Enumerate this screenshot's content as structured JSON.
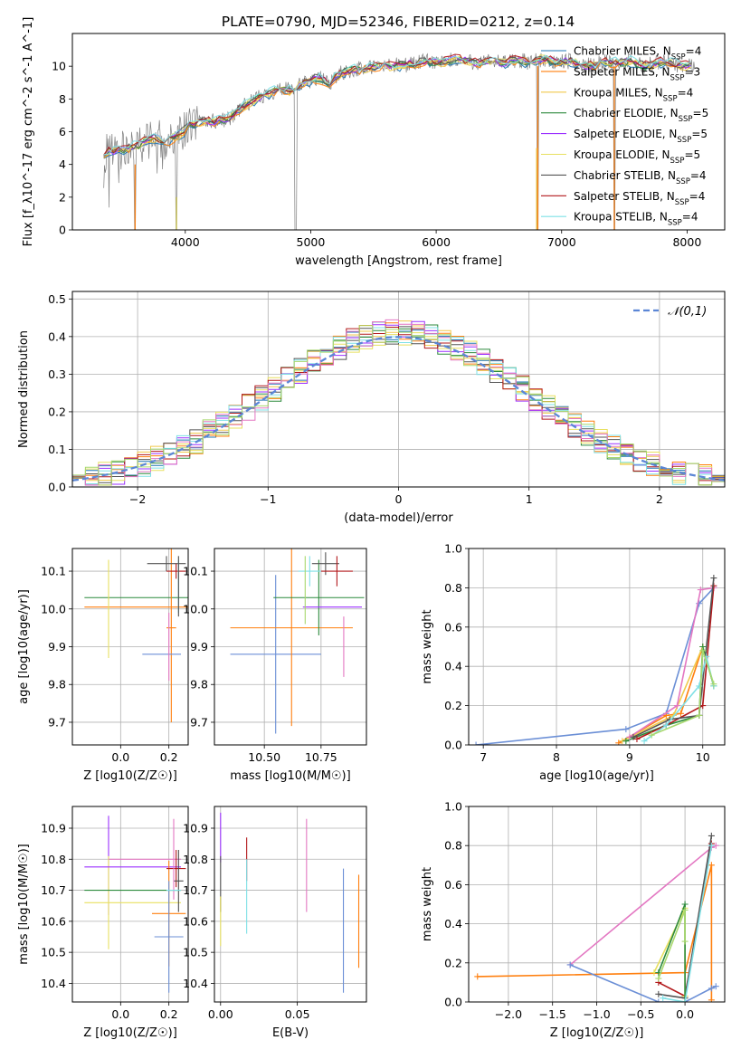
{
  "title": "PLATE=0790, MJD=52346, FIBERID=0212, z=0.14",
  "colors": {
    "chabrier_miles": "#1f77b4",
    "salpeter_miles": "#ff7f0e",
    "kroupa_miles": "#f0c94c",
    "chabrier_elodie": "#2c8a3c",
    "salpeter_elodie": "#9b30ff",
    "kroupa_elodie": "#e8e060",
    "chabrier_stelib": "#555555",
    "salpeter_stelib": "#b2181b",
    "kroupa_stelib": "#7fe0e6",
    "extra_1": "#e377c2",
    "extra_2": "#6b8fd6",
    "extra_3": "#a8d86e",
    "extra_4": "#4d4d4d"
  },
  "chart_data": [
    {
      "id": "spectrum",
      "type": "line",
      "xlabel": "wavelength [Angstrom, rest frame]",
      "ylabel": "Flux [f_λ10^-17 erg cm^-2 s^-1 A^-1]",
      "xlim": [
        3100,
        8300
      ],
      "ylim": [
        0,
        12
      ],
      "xticks": [
        4000,
        5000,
        6000,
        7000,
        8000
      ],
      "yticks": [
        0,
        2,
        4,
        6,
        8,
        10
      ],
      "grid": false,
      "legend_position": "upper-right",
      "series": [
        {
          "name": "Chabrier MILES, N_SSP=4",
          "color_key": "chabrier_miles"
        },
        {
          "name": "Salpeter MILES, N_SSP=3",
          "color_key": "salpeter_miles"
        },
        {
          "name": "Kroupa MILES, N_SSP=4",
          "color_key": "kroupa_miles"
        },
        {
          "name": "Chabrier ELODIE, N_SSP=5",
          "color_key": "chabrier_elodie"
        },
        {
          "name": "Salpeter ELODIE, N_SSP=5",
          "color_key": "salpeter_elodie"
        },
        {
          "name": "Kroupa ELODIE, N_SSP=5",
          "color_key": "kroupa_elodie"
        },
        {
          "name": "Chabrier STELIB, N_SSP=4",
          "color_key": "chabrier_stelib"
        },
        {
          "name": "Salpeter STELIB, N_SSP=4",
          "color_key": "salpeter_stelib"
        },
        {
          "name": "Kroupa STELIB, N_SSP=4",
          "color_key": "kroupa_stelib"
        }
      ],
      "data_curve": [
        [
          3350,
          4.6
        ],
        [
          3450,
          4.9
        ],
        [
          3550,
          5.0
        ],
        [
          3650,
          5.3
        ],
        [
          3750,
          5.6
        ],
        [
          3850,
          5.4
        ],
        [
          3950,
          5.8
        ],
        [
          4050,
          6.4
        ],
        [
          4150,
          6.7
        ],
        [
          4250,
          6.6
        ],
        [
          4350,
          6.8
        ],
        [
          4450,
          7.5
        ],
        [
          4550,
          7.9
        ],
        [
          4650,
          8.3
        ],
        [
          4750,
          8.6
        ],
        [
          4850,
          8.5
        ],
        [
          4950,
          9.0
        ],
        [
          5050,
          9.3
        ],
        [
          5150,
          9.0
        ],
        [
          5250,
          9.6
        ],
        [
          5350,
          9.8
        ],
        [
          5450,
          9.9
        ],
        [
          5550,
          10.0
        ],
        [
          5650,
          10.0
        ],
        [
          5750,
          10.1
        ],
        [
          5850,
          10.2
        ],
        [
          5950,
          10.3
        ],
        [
          6050,
          10.2
        ],
        [
          6150,
          10.4
        ],
        [
          6250,
          10.3
        ],
        [
          6350,
          10.2
        ],
        [
          6450,
          10.3
        ],
        [
          6550,
          10.2
        ],
        [
          6650,
          10.4
        ],
        [
          6750,
          10.2
        ],
        [
          6850,
          10.5
        ],
        [
          6950,
          10.2
        ],
        [
          7050,
          10.3
        ],
        [
          7150,
          10.1
        ],
        [
          7250,
          10.0
        ],
        [
          7350,
          10.3
        ],
        [
          7450,
          10.2
        ],
        [
          7550,
          10.3
        ],
        [
          7650,
          10.0
        ],
        [
          7750,
          10.2
        ],
        [
          7850,
          10.3
        ],
        [
          7950,
          10.0
        ],
        [
          8050,
          10.1
        ]
      ],
      "line_drops": [
        3600,
        3930,
        4880,
        6810,
        7420
      ]
    },
    {
      "id": "residuals",
      "type": "line",
      "xlabel": "(data-model)/error",
      "ylabel": "Normed distribution",
      "xlim": [
        -2.5,
        2.5
      ],
      "ylim": [
        0,
        0.52
      ],
      "xticks": [
        -2,
        -1,
        0,
        1,
        2
      ],
      "yticks": [
        0.0,
        0.1,
        0.2,
        0.3,
        0.4,
        0.5
      ],
      "grid": true,
      "legend_position": "upper-right",
      "gauss_label": "𝒩(0,1)",
      "bin_width": 0.1,
      "bin_start": -2.5
    },
    {
      "id": "age_vs_Z",
      "type": "scatter",
      "xlabel": "Z [log10(Z/Z☉)]",
      "ylabel": "age [log10(age/yr)]",
      "xlim": [
        -0.2,
        0.28
      ],
      "ylim": [
        9.64,
        10.16
      ],
      "xticks": [
        0.0,
        0.2
      ],
      "yticks": [
        9.7,
        9.8,
        9.9,
        10.0,
        10.1
      ],
      "grid": true,
      "points": [
        {
          "x": 0.2,
          "xerr": 0.35,
          "y": 10.03,
          "yerr": 0.0,
          "color_key": "chabrier_elodie"
        },
        {
          "x": 0.21,
          "xerr": 0.02,
          "y": 9.95,
          "yerr": 0.25,
          "color_key": "salpeter_miles"
        },
        {
          "x": 0.2,
          "xerr": 0.35,
          "y": 10.005,
          "yerr": 0.0,
          "color_key": "salpeter_miles"
        },
        {
          "x": 0.17,
          "xerr": 0.08,
          "y": 9.88,
          "yerr": 0.0,
          "color_key": "extra_2"
        },
        {
          "x": 0.19,
          "xerr": 0.08,
          "y": 10.12,
          "yerr": 0.02,
          "color_key": "chabrier_stelib"
        },
        {
          "x": 0.23,
          "xerr": 0.04,
          "y": 10.1,
          "yerr": 0.02,
          "color_key": "salpeter_stelib"
        },
        {
          "x": -0.05,
          "xerr": 0.0,
          "y": 10.0,
          "yerr": 0.13,
          "color_key": "kroupa_elodie"
        },
        {
          "x": 0.24,
          "xerr": 0.0,
          "y": 10.06,
          "yerr": 0.07,
          "color_key": "kroupa_stelib"
        },
        {
          "x": 0.24,
          "xerr": 0.0,
          "y": 10.06,
          "yerr": 0.08,
          "color_key": "extra_4"
        },
        {
          "x": 0.2,
          "xerr": 0.0,
          "y": 9.9,
          "yerr": 0.09,
          "color_key": "extra_1"
        }
      ]
    },
    {
      "id": "age_vs_mass",
      "type": "scatter",
      "xlabel": "mass [log10(M/M☉)]",
      "ylabel": "",
      "xlim": [
        10.28,
        10.95
      ],
      "ylim": [
        9.64,
        10.16
      ],
      "xticks": [
        10.5,
        10.75
      ],
      "xtick_labels": [
        "10.50",
        "10.75"
      ],
      "yticks": [
        9.7,
        9.8,
        9.9,
        10.0,
        10.1
      ],
      "grid": true,
      "points": [
        {
          "x": 10.55,
          "xerr": 0.2,
          "y": 9.88,
          "yerr": 0.21,
          "color_key": "extra_2"
        },
        {
          "x": 10.62,
          "xerr": 0.27,
          "y": 9.95,
          "yerr": 0.26,
          "color_key": "salpeter_miles"
        },
        {
          "x": 10.74,
          "xerr": 0.2,
          "y": 10.03,
          "yerr": 0.1,
          "color_key": "chabrier_elodie"
        },
        {
          "x": 10.8,
          "xerr": 0.13,
          "y": 10.005,
          "yerr": 0.0,
          "color_key": "salpeter_elodie"
        },
        {
          "x": 10.77,
          "xerr": 0.06,
          "y": 10.12,
          "yerr": 0.03,
          "color_key": "chabrier_stelib"
        },
        {
          "x": 10.82,
          "xerr": 0.07,
          "y": 10.1,
          "yerr": 0.04,
          "color_key": "salpeter_stelib"
        },
        {
          "x": 10.7,
          "xerr": 0.05,
          "y": 10.1,
          "yerr": 0.04,
          "color_key": "kroupa_stelib"
        },
        {
          "x": 10.68,
          "xerr": 0.0,
          "y": 10.05,
          "yerr": 0.09,
          "color_key": "extra_3"
        },
        {
          "x": 10.85,
          "xerr": 0.0,
          "y": 9.9,
          "yerr": 0.08,
          "color_key": "extra_1"
        }
      ]
    },
    {
      "id": "mass_weight_vs_age",
      "type": "line",
      "xlabel": "age [log10(age/yr)]",
      "ylabel": "mass weight",
      "xlim": [
        6.8,
        10.3
      ],
      "ylim": [
        0,
        1.0
      ],
      "xticks": [
        7,
        8,
        9,
        10
      ],
      "yticks": [
        0.0,
        0.2,
        0.4,
        0.6,
        0.8,
        1.0
      ],
      "grid": true,
      "series": [
        {
          "color_key": "extra_2",
          "x": [
            6.9,
            8.95,
            9.5,
            9.95,
            10.15
          ],
          "y": [
            0.0,
            0.08,
            0.16,
            0.72,
            0.8
          ]
        },
        {
          "color_key": "salpeter_miles",
          "x": [
            8.85,
            9.5,
            9.7,
            10.0
          ],
          "y": [
            0.01,
            0.15,
            0.16,
            0.5
          ]
        },
        {
          "color_key": "kroupa_miles",
          "x": [
            8.9,
            9.6,
            10.0,
            10.15
          ],
          "y": [
            0.02,
            0.15,
            0.5,
            0.3
          ]
        },
        {
          "color_key": "chabrier_elodie",
          "x": [
            8.95,
            9.5,
            9.95,
            10.0,
            10.15
          ],
          "y": [
            0.02,
            0.1,
            0.15,
            0.5,
            0.3
          ]
        },
        {
          "color_key": "extra_1",
          "x": [
            9.0,
            9.65,
            9.97,
            10.15
          ],
          "y": [
            0.04,
            0.2,
            0.79,
            0.8
          ]
        },
        {
          "color_key": "salpeter_stelib",
          "x": [
            9.1,
            9.5,
            10.0,
            10.15
          ],
          "y": [
            0.03,
            0.1,
            0.2,
            0.81
          ]
        },
        {
          "color_key": "chabrier_stelib",
          "x": [
            9.05,
            9.55,
            9.95,
            10.15
          ],
          "y": [
            0.04,
            0.13,
            0.15,
            0.85
          ]
        },
        {
          "color_key": "kroupa_stelib",
          "x": [
            9.2,
            9.5,
            9.95,
            10.05,
            10.15
          ],
          "y": [
            0.02,
            0.1,
            0.3,
            0.45,
            0.3
          ]
        },
        {
          "color_key": "extra_3",
          "x": [
            9.3,
            9.95,
            10.0,
            10.15
          ],
          "y": [
            0.05,
            0.15,
            0.48,
            0.31
          ]
        }
      ]
    },
    {
      "id": "mass_vs_Z",
      "type": "scatter",
      "xlabel": "Z [log10(Z/Z☉)]",
      "ylabel": "mass [log10(M/M☉)]",
      "xlim": [
        -0.2,
        0.28
      ],
      "ylim": [
        10.34,
        10.97
      ],
      "xticks": [
        0.0,
        0.2
      ],
      "yticks": [
        10.4,
        10.5,
        10.6,
        10.7,
        10.8,
        10.9
      ],
      "grid": true,
      "points": [
        {
          "x": -0.05,
          "xerr": 0.0,
          "y": 10.78,
          "yerr": 0.16,
          "color_key": "salpeter_elodie"
        },
        {
          "x": -0.05,
          "xerr": 0.0,
          "y": 10.66,
          "yerr": 0.15,
          "color_key": "kroupa_elodie"
        },
        {
          "x": 0.05,
          "xerr": 0.2,
          "y": 10.775,
          "yerr": 0.0,
          "color_key": "salpeter_elodie"
        },
        {
          "x": 0.05,
          "xerr": 0.2,
          "y": 10.7,
          "yerr": 0.0,
          "color_key": "chabrier_elodie"
        },
        {
          "x": 0.05,
          "xerr": 0.2,
          "y": 10.66,
          "yerr": 0.0,
          "color_key": "kroupa_elodie"
        },
        {
          "x": 0.1,
          "xerr": 0.15,
          "y": 10.8,
          "yerr": 0.0,
          "color_key": "extra_1"
        },
        {
          "x": 0.2,
          "xerr": 0.07,
          "y": 10.625,
          "yerr": 0.17,
          "color_key": "salpeter_miles"
        },
        {
          "x": 0.2,
          "xerr": 0.06,
          "y": 10.55,
          "yerr": 0.18,
          "color_key": "extra_2"
        },
        {
          "x": 0.23,
          "xerr": 0.04,
          "y": 10.77,
          "yerr": 0.06,
          "color_key": "salpeter_stelib"
        },
        {
          "x": 0.24,
          "xerr": 0.02,
          "y": 10.73,
          "yerr": 0.1,
          "color_key": "extra_4"
        },
        {
          "x": 0.22,
          "xerr": 0.0,
          "y": 10.8,
          "yerr": 0.13,
          "color_key": "extra_1"
        },
        {
          "x": 0.22,
          "xerr": 0.03,
          "y": 10.7,
          "yerr": 0.0,
          "color_key": "kroupa_stelib"
        }
      ]
    },
    {
      "id": "mass_vs_ebv",
      "type": "scatter",
      "xlabel": "E(B-V)",
      "ylabel": "",
      "xlim": [
        -0.004,
        0.095
      ],
      "ylim": [
        10.34,
        10.97
      ],
      "xticks": [
        0.0,
        0.05
      ],
      "xtick_labels": [
        "0.00",
        "0.05"
      ],
      "yticks": [
        10.4,
        10.5,
        10.6,
        10.7,
        10.8,
        10.9
      ],
      "grid": true,
      "points": [
        {
          "x": 0.0,
          "xerr": 0.0,
          "y": 10.87,
          "yerr": 0.08,
          "color_key": "salpeter_elodie"
        },
        {
          "x": 0.0,
          "xerr": 0.0,
          "y": 10.72,
          "yerr": 0.09,
          "color_key": "chabrier_stelib"
        },
        {
          "x": 0.0,
          "xerr": 0.0,
          "y": 10.6,
          "yerr": 0.08,
          "color_key": "kroupa_elodie"
        },
        {
          "x": 0.017,
          "xerr": 0.0,
          "y": 10.8,
          "yerr": 0.07,
          "color_key": "salpeter_stelib"
        },
        {
          "x": 0.017,
          "xerr": 0.0,
          "y": 10.68,
          "yerr": 0.12,
          "color_key": "kroupa_stelib"
        },
        {
          "x": 0.056,
          "xerr": 0.0,
          "y": 10.78,
          "yerr": 0.15,
          "color_key": "extra_1"
        },
        {
          "x": 0.08,
          "xerr": 0.0,
          "y": 10.57,
          "yerr": 0.2,
          "color_key": "extra_2"
        },
        {
          "x": 0.09,
          "xerr": 0.0,
          "y": 10.6,
          "yerr": 0.15,
          "color_key": "salpeter_miles"
        }
      ]
    },
    {
      "id": "mass_weight_vs_Z",
      "type": "line",
      "xlabel": "Z [log10(Z/Z☉)]",
      "ylabel": "mass weight",
      "xlim": [
        -2.45,
        0.45
      ],
      "ylim": [
        0,
        1.0
      ],
      "xticks": [
        -2.0,
        -1.5,
        -1.0,
        -0.5,
        0.0
      ],
      "yticks": [
        0.0,
        0.2,
        0.4,
        0.6,
        0.8,
        1.0
      ],
      "grid": true,
      "series": [
        {
          "color_key": "salpeter_miles",
          "x": [
            -2.35,
            0.0,
            0.3,
            0.3
          ],
          "y": [
            0.13,
            0.15,
            0.7,
            0.01
          ]
        },
        {
          "color_key": "extra_1",
          "x": [
            -1.3,
            0.3,
            0.35
          ],
          "y": [
            0.19,
            0.79,
            0.8
          ]
        },
        {
          "color_key": "extra_2",
          "x": [
            -1.3,
            -0.3,
            0.0,
            0.3,
            0.35
          ],
          "y": [
            0.19,
            0.0,
            0.0,
            0.07,
            0.08
          ]
        },
        {
          "color_key": "salpeter_stelib",
          "x": [
            -0.3,
            0.0,
            0.3
          ],
          "y": [
            0.1,
            0.03,
            0.81
          ]
        },
        {
          "color_key": "chabrier_stelib",
          "x": [
            -0.3,
            0.0,
            0.3
          ],
          "y": [
            0.04,
            0.02,
            0.85
          ]
        },
        {
          "color_key": "kroupa_elodie",
          "x": [
            -0.35,
            0.0,
            0.0
          ],
          "y": [
            0.15,
            0.48,
            0.03
          ]
        },
        {
          "color_key": "chabrier_elodie",
          "x": [
            -0.3,
            0.0,
            0.0
          ],
          "y": [
            0.15,
            0.5,
            0.0
          ]
        },
        {
          "color_key": "kroupa_stelib",
          "x": [
            -0.25,
            0.0,
            0.3
          ],
          "y": [
            0.02,
            0.0,
            0.8
          ]
        },
        {
          "color_key": "extra_3",
          "x": [
            -0.3,
            0.0,
            0.0
          ],
          "y": [
            0.12,
            0.47,
            0.31
          ]
        }
      ]
    }
  ]
}
